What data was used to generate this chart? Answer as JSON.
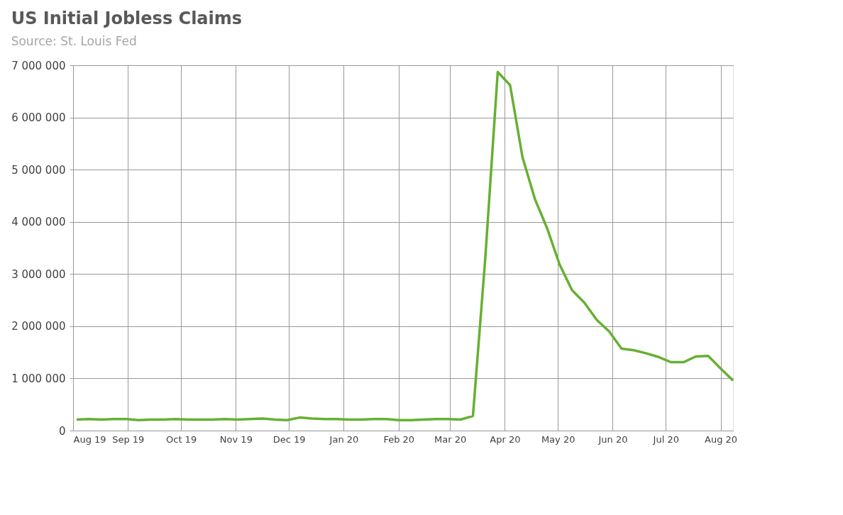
{
  "chart_data": {
    "type": "line",
    "title": "US Initial Jobless Claims",
    "subtitle": "Source: St. Louis Fed",
    "x": [
      "2019-08-03",
      "2019-08-10",
      "2019-08-17",
      "2019-08-24",
      "2019-08-31",
      "2019-09-07",
      "2019-09-14",
      "2019-09-21",
      "2019-09-28",
      "2019-10-05",
      "2019-10-12",
      "2019-10-19",
      "2019-10-26",
      "2019-11-02",
      "2019-11-09",
      "2019-11-16",
      "2019-11-23",
      "2019-11-30",
      "2019-12-07",
      "2019-12-14",
      "2019-12-21",
      "2019-12-28",
      "2020-01-04",
      "2020-01-11",
      "2020-01-18",
      "2020-01-25",
      "2020-02-01",
      "2020-02-08",
      "2020-02-15",
      "2020-02-22",
      "2020-02-29",
      "2020-03-07",
      "2020-03-14",
      "2020-03-21",
      "2020-03-28",
      "2020-04-04",
      "2020-04-11",
      "2020-04-18",
      "2020-04-25",
      "2020-05-02",
      "2020-05-09",
      "2020-05-16",
      "2020-05-23",
      "2020-05-30",
      "2020-06-06",
      "2020-06-13",
      "2020-06-20",
      "2020-06-27",
      "2020-07-04",
      "2020-07-11",
      "2020-07-18",
      "2020-07-25",
      "2020-08-01",
      "2020-08-08"
    ],
    "series": [
      {
        "color": "#66b032",
        "values": [
          210000,
          220000,
          210000,
          220000,
          220000,
          200000,
          210000,
          210000,
          220000,
          210000,
          210000,
          210000,
          220000,
          210000,
          220000,
          230000,
          210000,
          200000,
          250000,
          230000,
          220000,
          220000,
          210000,
          210000,
          220000,
          220000,
          200000,
          200000,
          210000,
          220000,
          220000,
          210000,
          280000,
          3310000,
          6870000,
          6620000,
          5240000,
          4440000,
          3870000,
          3180000,
          2690000,
          2450000,
          2120000,
          1900000,
          1570000,
          1540000,
          1480000,
          1410000,
          1310000,
          1310000,
          1420000,
          1430000,
          1190000,
          960000
        ]
      }
    ],
    "xlim": [
      "2019-08-01",
      "2020-08-08"
    ],
    "xticks": [
      {
        "value": "2019-08-01",
        "label": "Aug 19"
      },
      {
        "value": "2019-09-01",
        "label": "Sep 19"
      },
      {
        "value": "2019-10-01",
        "label": "Oct 19"
      },
      {
        "value": "2019-11-01",
        "label": "Nov 19"
      },
      {
        "value": "2019-12-01",
        "label": "Dec 19"
      },
      {
        "value": "2020-01-01",
        "label": "Jan 20"
      },
      {
        "value": "2020-02-01",
        "label": "Feb 20"
      },
      {
        "value": "2020-03-01",
        "label": "Mar 20"
      },
      {
        "value": "2020-04-01",
        "label": "Apr 20"
      },
      {
        "value": "2020-05-01",
        "label": "May 20"
      },
      {
        "value": "2020-06-01",
        "label": "Jun 20"
      },
      {
        "value": "2020-07-01",
        "label": "Jul 20"
      },
      {
        "value": "2020-08-01",
        "label": "Aug 20"
      }
    ],
    "ylim": [
      0,
      7000000
    ],
    "yticks": [
      {
        "value": 0,
        "label": "0"
      },
      {
        "value": 1000000,
        "label": "1 000 000"
      },
      {
        "value": 2000000,
        "label": "2 000 000"
      },
      {
        "value": 3000000,
        "label": "3 000 000"
      },
      {
        "value": 4000000,
        "label": "4 000 000"
      },
      {
        "value": 5000000,
        "label": "5 000 000"
      },
      {
        "value": 6000000,
        "label": "6 000 000"
      },
      {
        "value": 7000000,
        "label": "7 000 000"
      }
    ],
    "grid": true,
    "marker": "none",
    "line_style": "solid",
    "legend": false
  }
}
